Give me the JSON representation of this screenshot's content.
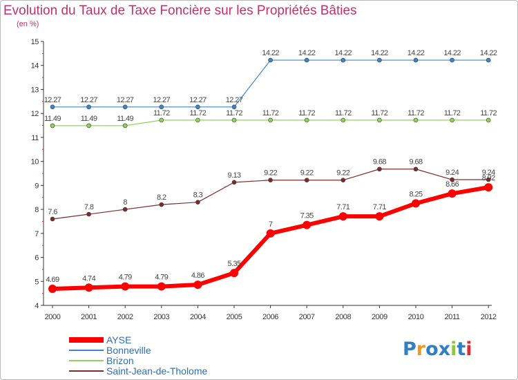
{
  "chart_data": {
    "type": "line",
    "title": "Evolution du Taux de Taxe Foncière sur les Propriétés Bâties",
    "unit_label": "(en %)",
    "xlabel": "",
    "ylabel": "(en %)",
    "ylim": [
      4,
      15
    ],
    "yticks": [
      "4",
      "5",
      "6",
      "7",
      "8",
      "9",
      "10",
      "11",
      "12",
      "13",
      "14",
      "15"
    ],
    "x": [
      "2000",
      "2001",
      "2002",
      "2003",
      "2004",
      "2005",
      "2006",
      "2007",
      "2008",
      "2009",
      "2010",
      "2011",
      "2012"
    ],
    "grid": false,
    "legend_position": "bottom-left",
    "series": [
      {
        "name": "AYSE",
        "color": "#ff0000",
        "values": [
          4.69,
          4.74,
          4.79,
          4.79,
          4.86,
          5.35,
          7,
          7.35,
          7.71,
          7.71,
          8.25,
          8.66,
          8.92
        ],
        "labels": [
          "4.69",
          "4.74",
          "4.79",
          "4.79",
          "4.86",
          "5.35",
          "7",
          "7.35",
          "7.71",
          "7.71",
          "8.25",
          "8.66",
          "8.92"
        ]
      },
      {
        "name": "Bonneville",
        "color": "#3d85c6",
        "values": [
          12.27,
          12.27,
          12.27,
          12.27,
          12.27,
          12.27,
          14.22,
          14.22,
          14.22,
          14.22,
          14.22,
          14.22,
          14.22
        ],
        "labels": [
          "12.27",
          "12.27",
          "12.27",
          "12.27",
          "12.27",
          "12.27",
          "14.22",
          "14.22",
          "14.22",
          "14.22",
          "14.22",
          "14.22",
          "14.22"
        ]
      },
      {
        "name": "Brizon",
        "color": "#8fd35a",
        "values": [
          11.49,
          11.49,
          11.49,
          11.72,
          11.72,
          11.72,
          11.72,
          11.72,
          11.72,
          11.72,
          11.72,
          11.72,
          11.72
        ],
        "labels": [
          "11.49",
          "11.49",
          "11.49",
          "11.72",
          "11.72",
          "11.72",
          "11.72",
          "11.72",
          "11.72",
          "11.72",
          "11.72",
          "11.72",
          "11.72"
        ]
      },
      {
        "name": "Saint-Jean-de-Tholome",
        "color": "#7d2b2b",
        "values": [
          7.6,
          7.8,
          8,
          8.2,
          8.3,
          9.13,
          9.22,
          9.22,
          9.22,
          9.68,
          9.68,
          9.24,
          9.24
        ],
        "labels": [
          "7.6",
          "7.8",
          "8",
          "8.2",
          "8.3",
          "9.13",
          "9.22",
          "9.22",
          "9.22",
          "9.68",
          "9.68",
          "9.24",
          "9.24"
        ]
      }
    ]
  },
  "logo": {
    "text": "Proxiti",
    "letters": [
      "P",
      "r",
      "o",
      "x",
      "i",
      "t",
      "i"
    ]
  }
}
